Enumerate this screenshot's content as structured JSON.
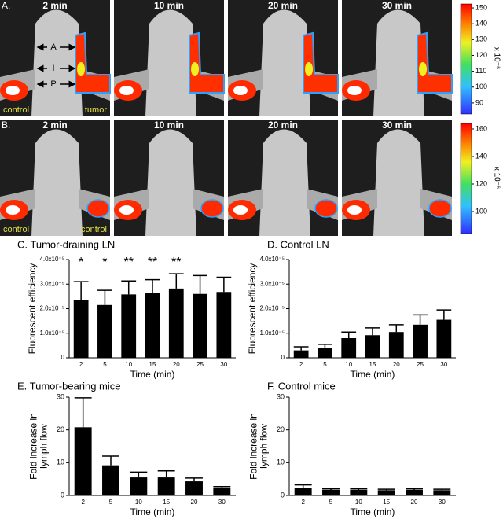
{
  "panels": [
    {
      "label": "A.",
      "times": [
        "2 min",
        "10 min",
        "20 min",
        "30 min"
      ],
      "annotations": [
        "A",
        "I",
        "P"
      ],
      "left_label": "control",
      "right_label": "tumor",
      "colorbar": {
        "lim": [
          83,
          152.5
        ],
        "ticks": [
          150,
          140,
          130,
          120,
          110,
          100,
          90
        ],
        "unit": "x 10⁻⁶"
      }
    },
    {
      "label": "B.",
      "times": [
        "2 min",
        "10 min",
        "20 min",
        "30 min"
      ],
      "left_label": "control",
      "right_label": "control",
      "colorbar": {
        "lim": [
          84,
          164
        ],
        "ticks": [
          160,
          140,
          120,
          100
        ],
        "unit": "x 10⁻⁶"
      }
    }
  ],
  "chart_data": [
    {
      "type": "bar",
      "title": "C. Tumor-draining LN",
      "xlabel": "Time (min)",
      "ylabel": [
        "Fluorescent efficiency"
      ],
      "categories": [
        "2",
        "5",
        "10",
        "15",
        "20",
        "25",
        "30"
      ],
      "values": [
        2.35e-05,
        2.15e-05,
        2.58e-05,
        2.63e-05,
        2.82e-05,
        2.6e-05,
        2.68e-05
      ],
      "errors": [
        7.5e-06,
        6e-06,
        5.5e-06,
        5.5e-06,
        6e-06,
        7.5e-06,
        6e-06
      ],
      "annotations": [
        "*",
        "*",
        "**",
        "**",
        "**"
      ],
      "color": "#000000",
      "ylim": [
        0,
        4e-05
      ],
      "yticks": [
        0,
        {
          "value": 1e-05,
          "label": "1.0x10⁻⁵"
        },
        {
          "value": 2e-05,
          "label": "2.0x10⁻⁵"
        },
        {
          "value": 3e-05,
          "label": "3.0x10⁻⁵"
        },
        {
          "value": 4e-05,
          "label": "4.0x10⁻⁵"
        }
      ]
    },
    {
      "type": "bar",
      "title": "D. Control LN",
      "xlabel": "Time (min)",
      "ylabel": [
        "Fluorescent efficiency"
      ],
      "categories": [
        "2",
        "5",
        "10",
        "15",
        "20",
        "25",
        "30"
      ],
      "values": [
        3e-06,
        4e-06,
        8e-06,
        9.2e-06,
        1.05e-05,
        1.35e-05,
        1.55e-05
      ],
      "errors": [
        1.5e-06,
        1.5e-06,
        2.5e-06,
        3e-06,
        3e-06,
        4e-06,
        4e-06
      ],
      "color": "#000000",
      "ylim": [
        0,
        4e-05
      ],
      "yticks": [
        0,
        {
          "value": 1e-05,
          "label": "1.0x10⁻⁵"
        },
        {
          "value": 2e-05,
          "label": "2.0x10⁻⁵"
        },
        {
          "value": 3e-05,
          "label": "3.0x10⁻⁵"
        },
        {
          "value": 4e-05,
          "label": "4.0x10⁻⁵"
        }
      ]
    },
    {
      "type": "bar",
      "title": "E. Tumor-bearing mice",
      "xlabel": "Time (min)",
      "ylabel": [
        "Fold increase in",
        "lymph flow"
      ],
      "categories": [
        "2",
        "5",
        "10",
        "15",
        "20",
        "30"
      ],
      "values": [
        20.8,
        9.2,
        5.5,
        5.5,
        4.3,
        2.2
      ],
      "errors": [
        9,
        2.8,
        1.6,
        2,
        1,
        0.5
      ],
      "color": "#000000",
      "ylim": [
        0,
        30
      ],
      "yticks": [
        0,
        10,
        20,
        30
      ]
    },
    {
      "type": "bar",
      "title": "F. Control mice",
      "xlabel": "Time (min)",
      "ylabel": [
        "Fold increase in",
        "lymph flow"
      ],
      "categories": [
        "2",
        "5",
        "10",
        "15",
        "20",
        "30"
      ],
      "values": [
        2.4,
        1.8,
        1.8,
        1.6,
        1.8,
        1.6
      ],
      "errors": [
        0.8,
        0.3,
        0.3,
        0.3,
        0.3,
        0.3
      ],
      "color": "#000000",
      "ylim": [
        0,
        30
      ],
      "yticks": [
        0,
        10,
        20,
        30
      ]
    }
  ]
}
